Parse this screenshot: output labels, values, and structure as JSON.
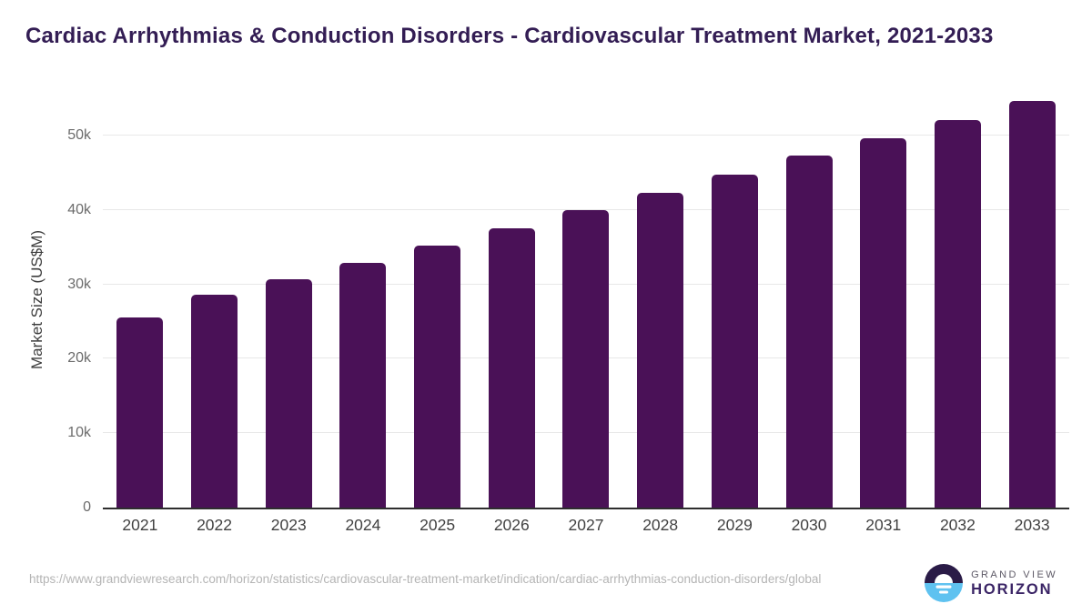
{
  "title": "Cardiac Arrhythmias & Conduction Disorders - Cardiovascular Treatment Market, 2021-2033",
  "chart_data": {
    "type": "bar",
    "title": "Cardiac Arrhythmias & Conduction Disorders - Cardiovascular Treatment Market, 2021-2033",
    "xlabel": "",
    "ylabel": "Market Size (US$M)",
    "unit": "US$M",
    "categories": [
      "2021",
      "2022",
      "2023",
      "2024",
      "2025",
      "2026",
      "2027",
      "2028",
      "2029",
      "2030",
      "2031",
      "2032",
      "2033"
    ],
    "values": [
      25600,
      28600,
      30700,
      32900,
      35200,
      37600,
      40000,
      42300,
      44800,
      47300,
      49700,
      52100,
      54600
    ],
    "ylim": [
      0,
      56000
    ],
    "yticks": [
      {
        "label": "0",
        "value": 0
      },
      {
        "label": "10k",
        "value": 10000
      },
      {
        "label": "20k",
        "value": 20000
      },
      {
        "label": "30k",
        "value": 30000
      },
      {
        "label": "40k",
        "value": 40000
      },
      {
        "label": "50k",
        "value": 50000
      }
    ],
    "grid": true,
    "legend": false,
    "bar_color": "#4A1157"
  },
  "footer": {
    "source_url": "https://www.grandviewresearch.com/horizon/statistics/cardiovascular-treatment-market/indication/cardiac-arrhythmias-conduction-disorders/global"
  },
  "logo": {
    "brand_top": "GRAND VIEW",
    "brand_bottom": "HORIZON",
    "circle_top_color": "#2A1B47",
    "circle_bottom_color": "#5FC2F0"
  },
  "colors": {
    "title": "#331D54",
    "bars": "#4A1157",
    "axis_line": "#2E2E2E",
    "gridline": "#E8E8E8",
    "y_tick_text": "#6B6B6B",
    "x_tick_text": "#414141",
    "url_text": "#B4B4B4",
    "background": "#FFFFFF"
  }
}
